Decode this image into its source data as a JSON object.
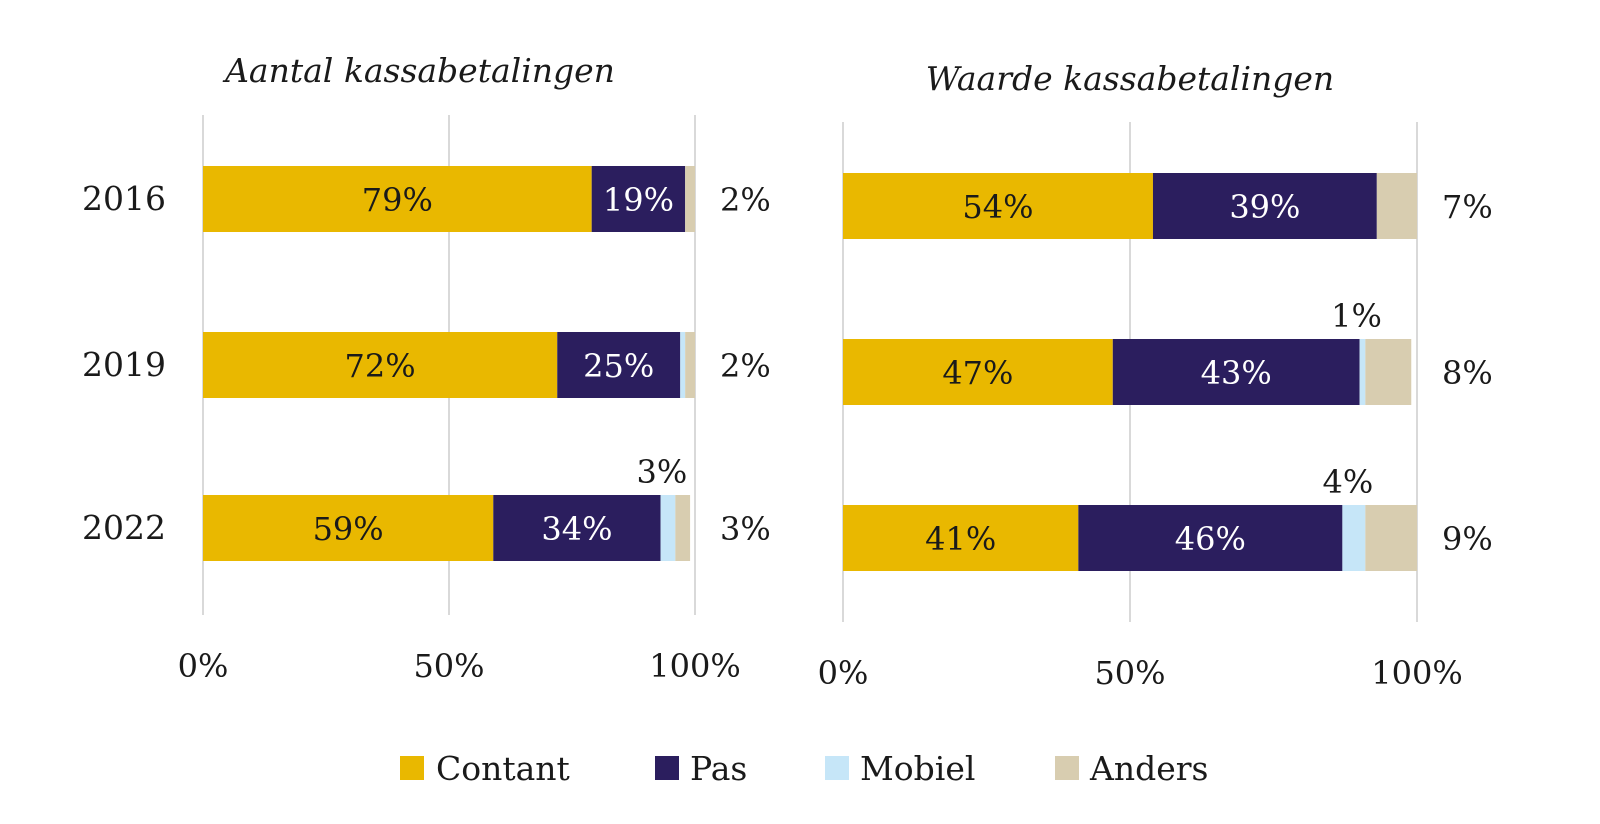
{
  "legend": [
    {
      "name": "Contant",
      "color": "#E9B800"
    },
    {
      "name": "Pas",
      "color": "#2B1E5E"
    },
    {
      "name": "Mobiel",
      "color": "#C6E6F8"
    },
    {
      "name": "Anders",
      "color": "#D8CDB0"
    }
  ],
  "chart_data": [
    {
      "type": "bar",
      "orientation": "horizontal",
      "stacked": true,
      "title": "Aantal kassabetalingen",
      "categories": [
        "2016",
        "2019",
        "2022"
      ],
      "xlim": [
        0,
        100
      ],
      "x_ticks": [
        "0%",
        "50%",
        "100%"
      ],
      "grid": true,
      "legend_position": "bottom",
      "series": [
        {
          "name": "Contant",
          "values": [
            79,
            72,
            59
          ],
          "labels": [
            "79%",
            "72%",
            "59%"
          ]
        },
        {
          "name": "Pas",
          "values": [
            19,
            25,
            34
          ],
          "labels": [
            "19%",
            "25%",
            "34%"
          ]
        },
        {
          "name": "Mobiel",
          "values": [
            0,
            1,
            3
          ],
          "labels": [
            "",
            "",
            "3%"
          ]
        },
        {
          "name": "Anders",
          "values": [
            2,
            2,
            3
          ],
          "labels": [
            "2%",
            "2%",
            "3%"
          ]
        }
      ]
    },
    {
      "type": "bar",
      "orientation": "horizontal",
      "stacked": true,
      "title": "Waarde kassabetalingen",
      "categories": [
        "2016",
        "2019",
        "2022"
      ],
      "xlim": [
        0,
        100
      ],
      "x_ticks": [
        "0%",
        "50%",
        "100%"
      ],
      "grid": true,
      "legend_position": "bottom",
      "series": [
        {
          "name": "Contant",
          "values": [
            54,
            47,
            41
          ],
          "labels": [
            "54%",
            "47%",
            "41%"
          ]
        },
        {
          "name": "Pas",
          "values": [
            39,
            43,
            46
          ],
          "labels": [
            "39%",
            "43%",
            "46%"
          ]
        },
        {
          "name": "Mobiel",
          "values": [
            0,
            1,
            4
          ],
          "labels": [
            "",
            "1%",
            "4%"
          ]
        },
        {
          "name": "Anders",
          "values": [
            7,
            8,
            9
          ],
          "labels": [
            "7%",
            "8%",
            "9%"
          ]
        }
      ]
    }
  ]
}
